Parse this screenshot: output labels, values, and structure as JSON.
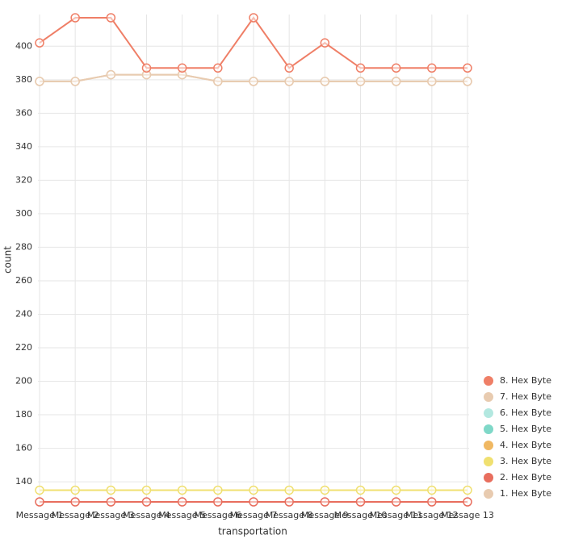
{
  "chart_data": {
    "type": "line",
    "x_label": "transportation",
    "y_label": "count",
    "categories": [
      "Message 1",
      "Message 2",
      "Message 3",
      "Message 4",
      "Message 5",
      "Message 6",
      "Message 7",
      "Message 8",
      "Message 9",
      "Message 10",
      "Message 11",
      "Message 12",
      "Message 13"
    ],
    "series": [
      {
        "name": "8. Hex Byte",
        "color": "#ef7f67",
        "values": [
          402,
          417,
          417,
          387,
          387,
          387,
          417,
          387,
          402,
          387,
          387,
          387,
          387
        ]
      },
      {
        "name": "7. Hex Byte",
        "color": "#e8cbb0",
        "values": [
          379,
          379,
          383,
          383,
          383,
          379,
          379,
          379,
          379,
          379,
          379,
          379,
          379
        ]
      },
      {
        "name": "6. Hex Byte",
        "color": "#b3e8e0",
        "values": [
          null,
          null,
          null,
          null,
          null,
          null,
          null,
          null,
          null,
          null,
          null,
          null,
          null
        ]
      },
      {
        "name": "5. Hex Byte",
        "color": "#7fd8c8",
        "values": [
          null,
          null,
          null,
          null,
          null,
          null,
          null,
          null,
          null,
          null,
          null,
          null,
          null
        ]
      },
      {
        "name": "4. Hex Byte",
        "color": "#f0b862",
        "values": [
          null,
          null,
          null,
          null,
          null,
          null,
          null,
          null,
          null,
          null,
          null,
          null,
          null
        ]
      },
      {
        "name": "3. Hex Byte",
        "color": "#f0e070",
        "values": [
          135,
          135,
          135,
          135,
          135,
          135,
          135,
          135,
          135,
          135,
          135,
          135,
          135
        ]
      },
      {
        "name": "2. Hex Byte",
        "color": "#e86e5e",
        "values": [
          128,
          128,
          128,
          128,
          128,
          128,
          128,
          128,
          128,
          128,
          128,
          128,
          128
        ]
      },
      {
        "name": "1. Hex Byte",
        "color": "#e8cbb0",
        "values": [
          379,
          379,
          383,
          383,
          383,
          379,
          379,
          379,
          379,
          379,
          379,
          379,
          379
        ]
      }
    ],
    "ylim": [
      128,
      417
    ],
    "yticks": [
      140,
      160,
      180,
      200,
      220,
      240,
      260,
      280,
      300,
      320,
      340,
      360,
      380,
      400
    ],
    "grid": true,
    "legend": "bottom-right"
  }
}
